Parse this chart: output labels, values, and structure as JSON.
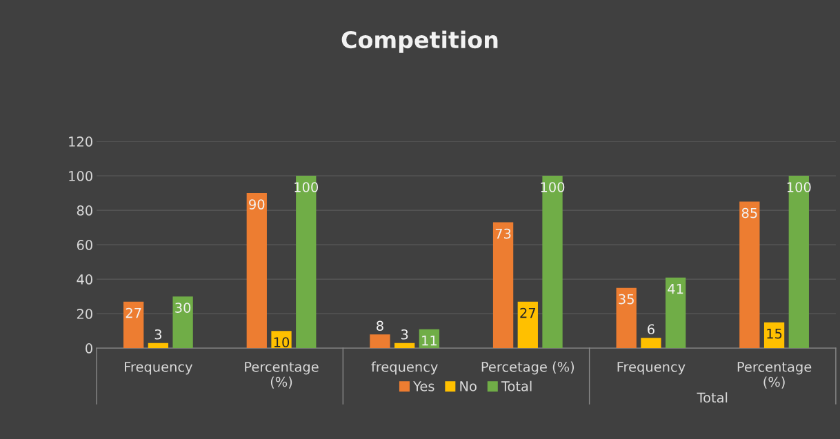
{
  "chart_data": {
    "type": "bar",
    "title": "Competition",
    "categories": [
      "Frequency",
      "Percentage\n(%)",
      "frequency",
      "Percetage (%)",
      "Frequency",
      "Percentage\n(%)"
    ],
    "series": [
      {
        "name": "Yes",
        "color": "#ed7d31",
        "values": [
          27,
          90,
          8,
          73,
          35,
          85
        ]
      },
      {
        "name": "No",
        "color": "#ffc000",
        "values": [
          3,
          10,
          3,
          27,
          6,
          15
        ]
      },
      {
        "name": "Total",
        "color": "#70ad47",
        "values": [
          30,
          100,
          11,
          100,
          41,
          100
        ]
      }
    ],
    "ylim": [
      0,
      120
    ],
    "yticks": [
      0,
      20,
      40,
      60,
      80,
      100,
      120
    ],
    "grid": "y",
    "legend": "bottom",
    "data_labels": true,
    "annotations": [
      "Total"
    ]
  }
}
